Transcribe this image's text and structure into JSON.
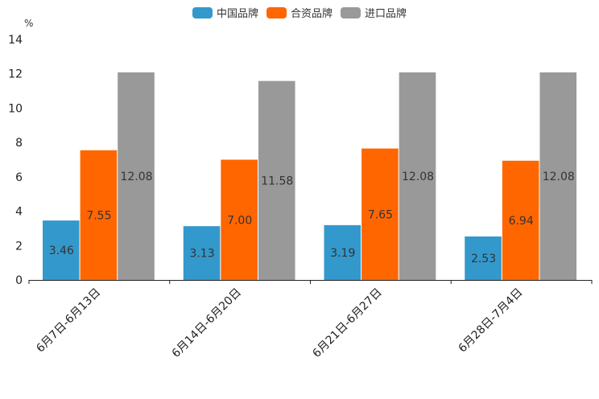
{
  "chart_data": {
    "type": "bar",
    "title": "",
    "ylabel": "%",
    "xlabel": "",
    "ylim": [
      0,
      14
    ],
    "yticks": [
      0,
      2,
      4,
      6,
      8,
      10,
      12,
      14
    ],
    "categories": [
      "6月7日-6月13日",
      "6月14日-6月20日",
      "6月21日-6月27日",
      "6月28日-7月4日"
    ],
    "series": [
      {
        "name": "中国品牌",
        "color": "#3399cc",
        "values": [
          3.46,
          3.13,
          3.19,
          2.53
        ]
      },
      {
        "name": "合资品牌",
        "color": "#ff6600",
        "values": [
          7.55,
          7.0,
          7.65,
          6.94
        ]
      },
      {
        "name": "进口品牌",
        "color": "#999999",
        "values": [
          12.08,
          11.58,
          12.08,
          12.08
        ]
      }
    ],
    "legend_position": "top-center",
    "grid": false
  }
}
